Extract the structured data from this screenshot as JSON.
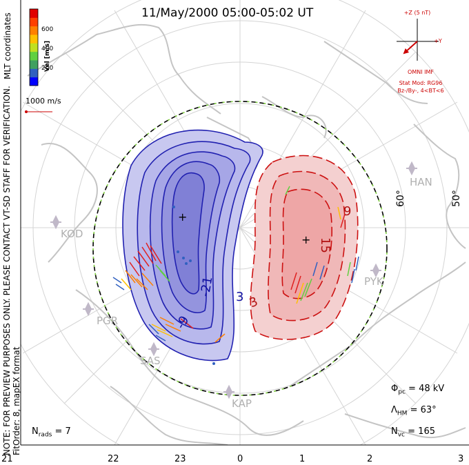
{
  "title": "11/May/2000 05:00-05:02 UT",
  "note_lines": [
    "NOTE: FOR PREVIEW PURPOSES ONLY. PLEASE CONTACT VT-SD STAFF FOR VERIFICATION.",
    "FitOrder: 8, mapEX format"
  ],
  "coord_label": "MLT coordinates",
  "colorbar": {
    "label": "Vel [m/s]",
    "ticks": [
      "600",
      "400",
      "200"
    ],
    "colors": [
      "#0000ff",
      "#3060c0",
      "#40a060",
      "#60d040",
      "#c0e020",
      "#ffc000",
      "#ff8000",
      "#ff4000",
      "#e00000"
    ]
  },
  "reference_vector": "1000 m/s",
  "imf": {
    "bz_label": "+Z (5 nT)",
    "by_label": "+Y",
    "source": "OMNI IMF",
    "stat_mod": "Stat Mod: RG96",
    "condition": "Bz-/By-, 4<BT<6"
  },
  "stations": [
    "HAN",
    "KOD",
    "PYK",
    "PGR",
    "SAS",
    "KAP"
  ],
  "latitudes": [
    "60°",
    "50°"
  ],
  "contour_labels_negative": [
    "-21",
    "-9",
    "3"
  ],
  "contour_labels_positive": [
    "15",
    "9",
    "3"
  ],
  "stats": {
    "phi_pc_symbol": "Φ",
    "phi_pc_sub": "pc",
    "phi_pc_value": "= 48 kV",
    "lambda_symbol": "Λ",
    "lambda_sub": "HM",
    "lambda_value": "= 63°",
    "nvc_symbol": "N",
    "nvc_sub": "vc",
    "nvc_value": "= 165",
    "nrads_symbol": "N",
    "nrads_sub": "rads",
    "nrads_value": "= 7"
  },
  "mlt_ticks": [
    "21",
    "22",
    "23",
    "0",
    "1",
    "2",
    "3"
  ],
  "colors": {
    "negative_cell": "#2020b0",
    "positive_cell": "#cc1010",
    "boundary_green": "#80d040",
    "landmass": "#c8c8c8",
    "grid": "#d0d0d0"
  }
}
